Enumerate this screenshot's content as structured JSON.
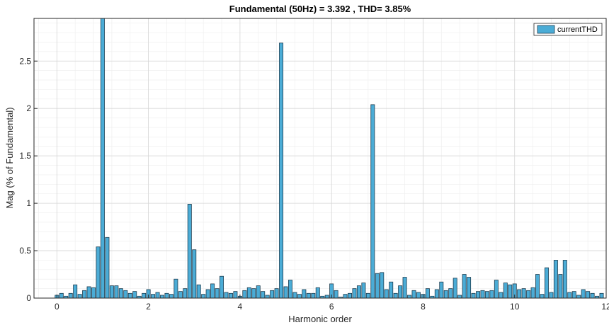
{
  "chart_data": {
    "type": "bar",
    "title": "Fundamental (50Hz) = 3.392 , THD= 3.85%",
    "xlabel": "Harmonic order",
    "ylabel": "Mag (% of Fundamental)",
    "xlim": [
      -0.5,
      12
    ],
    "ylim": [
      0,
      2.95
    ],
    "x_ticks": [
      "0",
      "2",
      "4",
      "6",
      "8",
      "10",
      "12"
    ],
    "y_ticks": [
      "0",
      "0.5",
      "1",
      "1.5",
      "2",
      "2.5"
    ],
    "grid": true,
    "minor_grid": true,
    "legend_position": "top-right",
    "bar_color": "#4bacd6",
    "bar_edge": "#1f3f52",
    "bar_width": 0.08,
    "series": [
      {
        "name": "currentTHD",
        "x": [
          0,
          0.1,
          0.2,
          0.3,
          0.4,
          0.5,
          0.6,
          0.7,
          0.8,
          0.9,
          1.0,
          1.1,
          1.2,
          1.3,
          1.4,
          1.5,
          1.6,
          1.7,
          1.8,
          1.9,
          2.0,
          2.1,
          2.2,
          2.3,
          2.4,
          2.5,
          2.6,
          2.7,
          2.8,
          2.9,
          3.0,
          3.1,
          3.2,
          3.3,
          3.4,
          3.5,
          3.6,
          3.7,
          3.8,
          3.9,
          4.0,
          4.1,
          4.2,
          4.3,
          4.4,
          4.5,
          4.6,
          4.7,
          4.8,
          4.9,
          5.0,
          5.1,
          5.2,
          5.3,
          5.4,
          5.5,
          5.6,
          5.7,
          5.8,
          5.9,
          6.0,
          6.1,
          6.2,
          6.3,
          6.4,
          6.5,
          6.6,
          6.7,
          6.8,
          6.9,
          7.0,
          7.1,
          7.2,
          7.3,
          7.4,
          7.5,
          7.6,
          7.7,
          7.8,
          7.9,
          8.0,
          8.1,
          8.2,
          8.3,
          8.4,
          8.5,
          8.6,
          8.7,
          8.8,
          8.9,
          9.0,
          9.1,
          9.2,
          9.3,
          9.4,
          9.5,
          9.6,
          9.7,
          9.8,
          9.9,
          10.0,
          10.1,
          10.2,
          10.3,
          10.4,
          10.5,
          10.6,
          10.7,
          10.8,
          10.9,
          11.0,
          11.1,
          11.2,
          11.3,
          11.4,
          11.5,
          11.6,
          11.7,
          11.8,
          11.9
        ],
        "values": [
          0.03,
          0.05,
          0.02,
          0.05,
          0.14,
          0.04,
          0.08,
          0.12,
          0.11,
          0.54,
          2.95,
          0.64,
          0.13,
          0.13,
          0.1,
          0.08,
          0.05,
          0.07,
          0.02,
          0.05,
          0.09,
          0.04,
          0.06,
          0.03,
          0.05,
          0.04,
          0.2,
          0.07,
          0.1,
          0.99,
          0.51,
          0.14,
          0.04,
          0.09,
          0.15,
          0.1,
          0.23,
          0.06,
          0.05,
          0.07,
          0.02,
          0.08,
          0.11,
          0.1,
          0.13,
          0.07,
          0.03,
          0.08,
          0.1,
          2.69,
          0.12,
          0.19,
          0.06,
          0.04,
          0.09,
          0.05,
          0.05,
          0.11,
          0.02,
          0.03,
          0.15,
          0.08,
          0.01,
          0.04,
          0.05,
          0.1,
          0.13,
          0.16,
          0.05,
          2.04,
          0.26,
          0.27,
          0.09,
          0.17,
          0.05,
          0.13,
          0.22,
          0.03,
          0.08,
          0.06,
          0.04,
          0.1,
          0.02,
          0.09,
          0.17,
          0.08,
          0.1,
          0.21,
          0.03,
          0.25,
          0.22,
          0.05,
          0.07,
          0.08,
          0.07,
          0.08,
          0.19,
          0.06,
          0.16,
          0.14,
          0.15,
          0.09,
          0.1,
          0.08,
          0.11,
          0.25,
          0.04,
          0.32,
          0.06,
          0.4,
          0.25,
          0.4,
          0.06,
          0.07,
          0.03,
          0.09,
          0.07,
          0.05,
          0.02,
          0.05
        ]
      }
    ]
  }
}
